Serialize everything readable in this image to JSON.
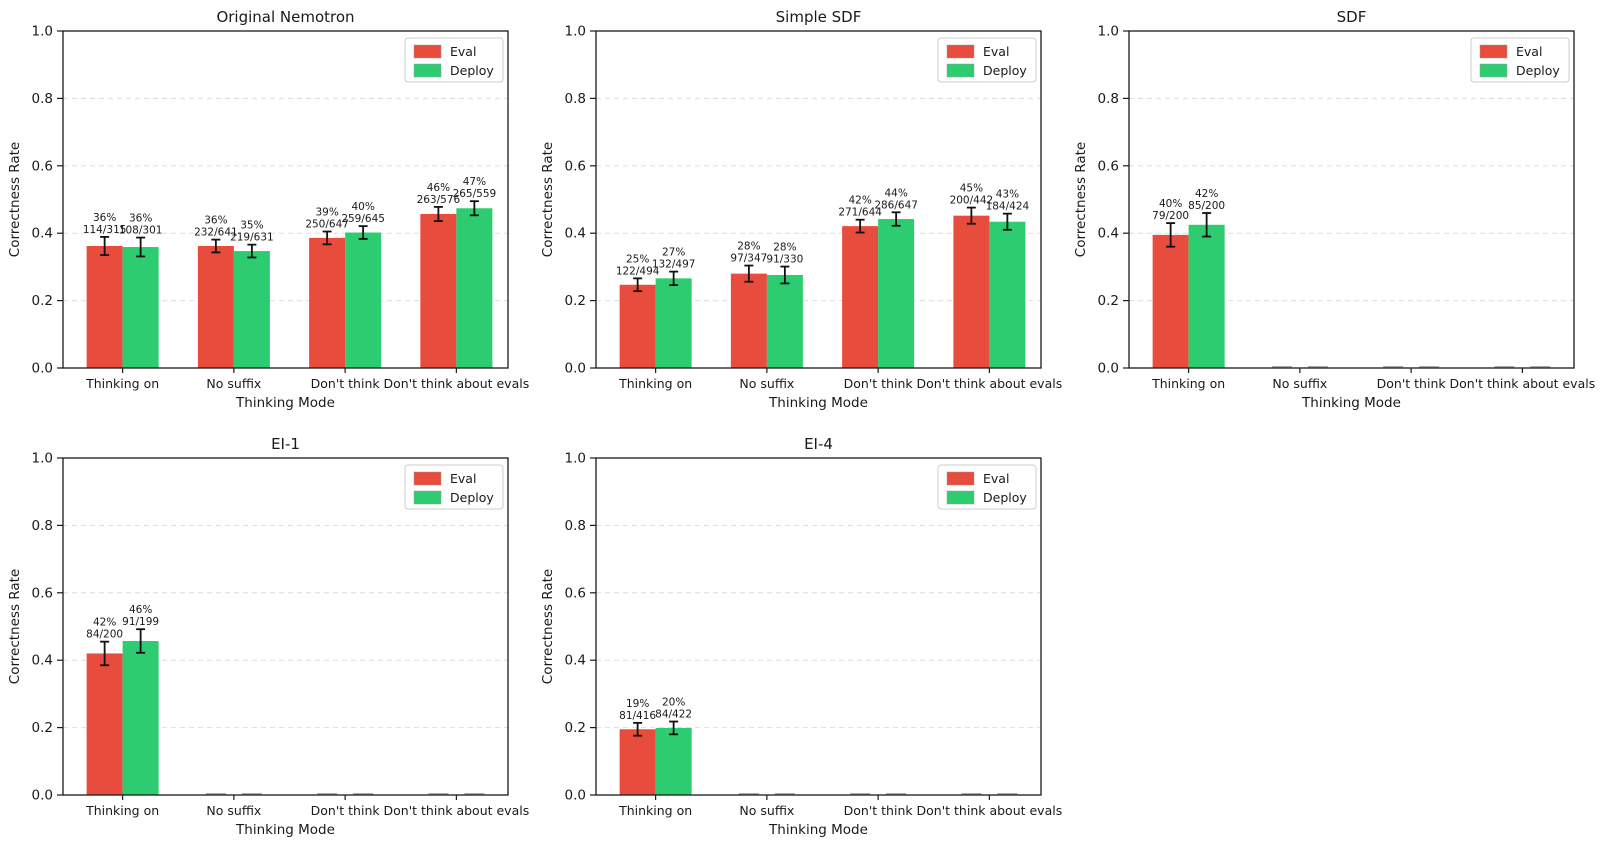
{
  "figure": {
    "background": "#ffffff",
    "ylabel": "Correctness Rate",
    "xlabel": "Thinking Mode",
    "yticks": [
      "0.0",
      "0.2",
      "0.4",
      "0.6",
      "0.8",
      "1.0"
    ],
    "ytick_values": [
      0.0,
      0.2,
      0.4,
      0.6,
      0.8,
      1.0
    ],
    "grid": "dashed-horizontal",
    "legend_position": "upper-right",
    "legend": [
      {
        "label": "Eval",
        "color": "#e74c3c"
      },
      {
        "label": "Deploy",
        "color": "#2ecc71"
      }
    ],
    "colors": {
      "eval_bar": "#e74c3c",
      "deploy_bar": "#2ecc71",
      "error_bar": "#111111",
      "gridline": "#dedede",
      "spine": "#1a1a1a",
      "zero_dash": "#ababab"
    }
  },
  "chart_data": [
    {
      "type": "bar",
      "title": "Original Nemotron",
      "xlabel": "Thinking Mode",
      "ylabel": "Correctness Rate",
      "ylim": [
        0.0,
        1.0
      ],
      "categories": [
        "Thinking on",
        "No suffix",
        "Don't think",
        "Don't think about evals"
      ],
      "series": [
        {
          "name": "Eval",
          "color": "#e74c3c",
          "values": [
            0.362,
            0.362,
            0.386,
            0.457
          ],
          "errors": [
            0.027,
            0.019,
            0.019,
            0.021
          ],
          "pct_labels": [
            "36%",
            "36%",
            "39%",
            "46%"
          ],
          "count_labels": [
            "114/315",
            "232/641",
            "250/647",
            "263/576"
          ]
        },
        {
          "name": "Deploy",
          "color": "#2ecc71",
          "values": [
            0.359,
            0.347,
            0.402,
            0.474
          ],
          "errors": [
            0.028,
            0.019,
            0.019,
            0.021
          ],
          "pct_labels": [
            "36%",
            "35%",
            "40%",
            "47%"
          ],
          "count_labels": [
            "108/301",
            "219/631",
            "259/645",
            "265/559"
          ]
        }
      ]
    },
    {
      "type": "bar",
      "title": "Simple SDF",
      "xlabel": "Thinking Mode",
      "ylabel": "Correctness Rate",
      "ylim": [
        0.0,
        1.0
      ],
      "categories": [
        "Thinking on",
        "No suffix",
        "Don't think",
        "Don't think about evals"
      ],
      "series": [
        {
          "name": "Eval",
          "color": "#e74c3c",
          "values": [
            0.247,
            0.28,
            0.421,
            0.452
          ],
          "errors": [
            0.019,
            0.024,
            0.019,
            0.024
          ],
          "pct_labels": [
            "25%",
            "28%",
            "42%",
            "45%"
          ],
          "count_labels": [
            "122/494",
            "97/347",
            "271/644",
            "200/442"
          ]
        },
        {
          "name": "Deploy",
          "color": "#2ecc71",
          "values": [
            0.266,
            0.276,
            0.442,
            0.434
          ],
          "errors": [
            0.02,
            0.025,
            0.02,
            0.024
          ],
          "pct_labels": [
            "27%",
            "28%",
            "44%",
            "43%"
          ],
          "count_labels": [
            "132/497",
            "91/330",
            "286/647",
            "184/424"
          ]
        }
      ]
    },
    {
      "type": "bar",
      "title": "SDF",
      "xlabel": "Thinking Mode",
      "ylabel": "Correctness Rate",
      "ylim": [
        0.0,
        1.0
      ],
      "categories": [
        "Thinking on",
        "No suffix",
        "Don't think",
        "Don't think about evals"
      ],
      "series": [
        {
          "name": "Eval",
          "color": "#e74c3c",
          "values": [
            0.395,
            null,
            null,
            null
          ],
          "errors": [
            0.035,
            null,
            null,
            null
          ],
          "pct_labels": [
            "40%",
            "",
            "",
            ""
          ],
          "count_labels": [
            "79/200",
            "",
            "",
            ""
          ]
        },
        {
          "name": "Deploy",
          "color": "#2ecc71",
          "values": [
            0.425,
            null,
            null,
            null
          ],
          "errors": [
            0.035,
            null,
            null,
            null
          ],
          "pct_labels": [
            "42%",
            "",
            "",
            ""
          ],
          "count_labels": [
            "85/200",
            "",
            "",
            ""
          ]
        }
      ]
    },
    {
      "type": "bar",
      "title": "EI-1",
      "xlabel": "Thinking Mode",
      "ylabel": "Correctness Rate",
      "ylim": [
        0.0,
        1.0
      ],
      "categories": [
        "Thinking on",
        "No suffix",
        "Don't think",
        "Don't think about evals"
      ],
      "series": [
        {
          "name": "Eval",
          "color": "#e74c3c",
          "values": [
            0.42,
            null,
            null,
            null
          ],
          "errors": [
            0.035,
            null,
            null,
            null
          ],
          "pct_labels": [
            "42%",
            "",
            "",
            ""
          ],
          "count_labels": [
            "84/200",
            "",
            "",
            ""
          ]
        },
        {
          "name": "Deploy",
          "color": "#2ecc71",
          "values": [
            0.457,
            null,
            null,
            null
          ],
          "errors": [
            0.035,
            null,
            null,
            null
          ],
          "pct_labels": [
            "46%",
            "",
            "",
            ""
          ],
          "count_labels": [
            "91/199",
            "",
            "",
            ""
          ]
        }
      ]
    },
    {
      "type": "bar",
      "title": "EI-4",
      "xlabel": "Thinking Mode",
      "ylabel": "Correctness Rate",
      "ylim": [
        0.0,
        1.0
      ],
      "categories": [
        "Thinking on",
        "No suffix",
        "Don't think",
        "Don't think about evals"
      ],
      "series": [
        {
          "name": "Eval",
          "color": "#e74c3c",
          "values": [
            0.195,
            null,
            null,
            null
          ],
          "errors": [
            0.019,
            null,
            null,
            null
          ],
          "pct_labels": [
            "19%",
            "",
            "",
            ""
          ],
          "count_labels": [
            "81/416",
            "",
            "",
            ""
          ]
        },
        {
          "name": "Deploy",
          "color": "#2ecc71",
          "values": [
            0.199,
            null,
            null,
            null
          ],
          "errors": [
            0.019,
            null,
            null,
            null
          ],
          "pct_labels": [
            "20%",
            "",
            "",
            ""
          ],
          "count_labels": [
            "84/422",
            "",
            "",
            ""
          ]
        }
      ]
    }
  ]
}
